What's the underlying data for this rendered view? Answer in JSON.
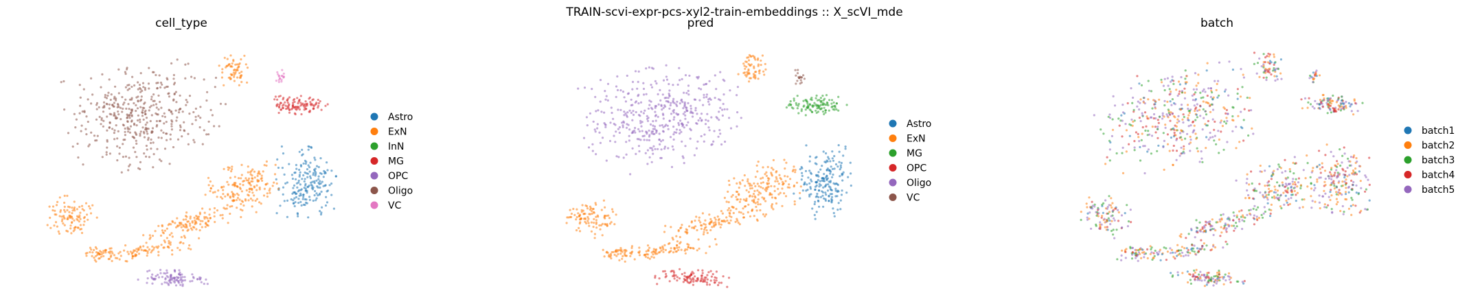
{
  "figure": {
    "suptitle": "TRAIN-scvi-expr-pcs-xyl2-train-embeddings :: X_scVI_mde"
  },
  "chart_data": [
    {
      "type": "scatter",
      "title": "cell_type",
      "xlabel": "",
      "ylabel": "",
      "axes_visible": false,
      "grid": false,
      "legend_placement": "right",
      "series": [
        {
          "name": "Astro",
          "color": "#1f77b4"
        },
        {
          "name": "ExN",
          "color": "#ff7f0e"
        },
        {
          "name": "InN",
          "color": "#2ca02c"
        },
        {
          "name": "MG",
          "color": "#d62728"
        },
        {
          "name": "OPC",
          "color": "#9467bd"
        },
        {
          "name": "Oligo",
          "color": "#8c564b"
        },
        {
          "name": "VC",
          "color": "#e377c2"
        }
      ]
    },
    {
      "type": "scatter",
      "title": "pred",
      "xlabel": "",
      "ylabel": "",
      "axes_visible": false,
      "grid": false,
      "legend_placement": "right",
      "series": [
        {
          "name": "Astro",
          "color": "#1f77b4"
        },
        {
          "name": "ExN",
          "color": "#ff7f0e"
        },
        {
          "name": "MG",
          "color": "#2ca02c"
        },
        {
          "name": "OPC",
          "color": "#d62728"
        },
        {
          "name": "Oligo",
          "color": "#9467bd"
        },
        {
          "name": "VC",
          "color": "#8c564b"
        }
      ]
    },
    {
      "type": "scatter",
      "title": "batch",
      "xlabel": "",
      "ylabel": "",
      "axes_visible": false,
      "grid": false,
      "legend_placement": "right",
      "series": [
        {
          "name": "batch1",
          "color": "#1f77b4"
        },
        {
          "name": "batch2",
          "color": "#ff7f0e"
        },
        {
          "name": "batch3",
          "color": "#2ca02c"
        },
        {
          "name": "batch4",
          "color": "#d62728"
        },
        {
          "name": "batch5",
          "color": "#9467bd"
        }
      ]
    }
  ]
}
